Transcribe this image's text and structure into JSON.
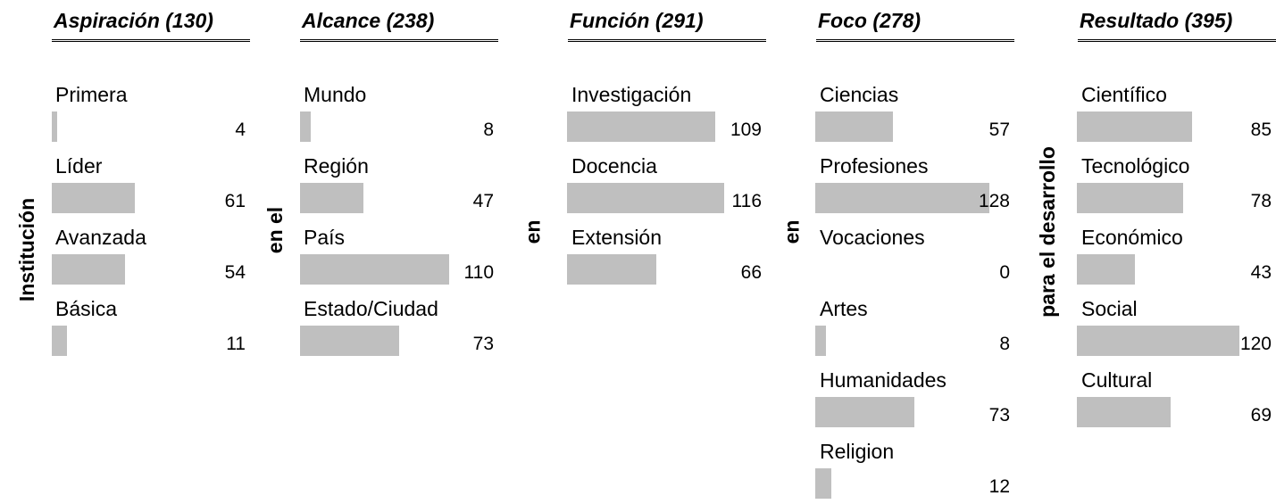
{
  "style": {
    "bar_color": "#bfbfbf",
    "text_color": "#000000"
  },
  "connectors": [
    "Institución",
    "en el",
    "en",
    "en",
    "para el desarrollo"
  ],
  "chart_data": {
    "type": "bar",
    "orientation": "horizontal",
    "groups": [
      {
        "title": "Aspiración (130)",
        "categories": [
          "Primera",
          "Líder",
          "Avanzada",
          "Básica"
        ],
        "values": [
          4,
          61,
          54,
          11
        ]
      },
      {
        "title": "Alcance (238)",
        "categories": [
          "Mundo",
          "Región",
          "País",
          "Estado/Ciudad"
        ],
        "values": [
          8,
          47,
          110,
          73
        ]
      },
      {
        "title": "Función (291)",
        "categories": [
          "Investigación",
          "Docencia",
          "Extensión"
        ],
        "values": [
          109,
          116,
          66
        ]
      },
      {
        "title": "Foco (278)",
        "categories": [
          "Ciencias",
          "Profesiones",
          "Vocaciones",
          "Artes",
          "Humanidades",
          "Religion"
        ],
        "values": [
          57,
          128,
          0,
          8,
          73,
          12
        ]
      },
      {
        "title": "Resultado (395)",
        "categories": [
          "Científico",
          "Tecnológico",
          "Económico",
          "Social",
          "Cultural"
        ],
        "values": [
          85,
          78,
          43,
          120,
          69
        ]
      }
    ]
  }
}
